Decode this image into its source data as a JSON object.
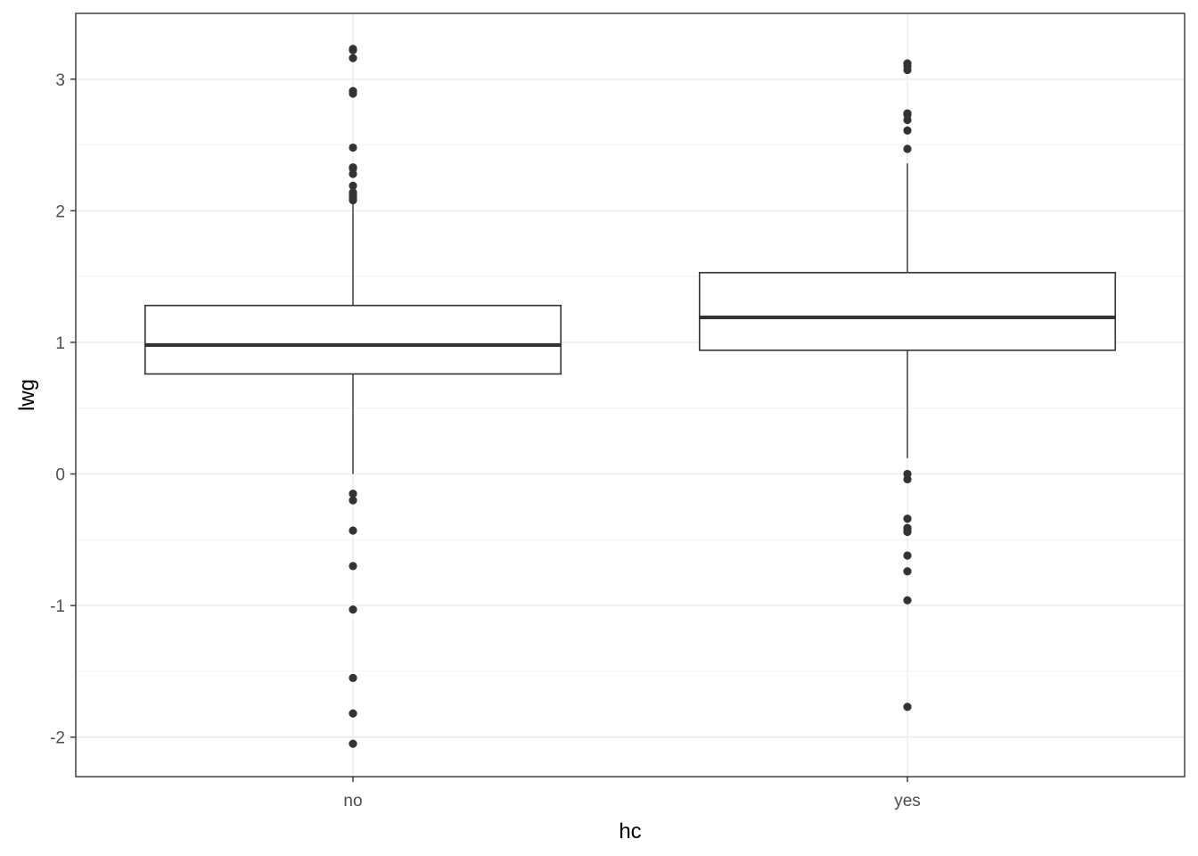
{
  "chart_data": {
    "type": "boxplot",
    "title": "",
    "xlabel": "hc",
    "ylabel": "lwg",
    "categories": [
      "no",
      "yes"
    ],
    "ylim": [
      -2.3,
      3.5
    ],
    "yticks": [
      -2,
      -1,
      0,
      1,
      2,
      3
    ],
    "ytick_labels": [
      "-2",
      "-1",
      "0",
      "1",
      "2",
      "3"
    ],
    "grid": true,
    "legend": "none",
    "colors": {
      "box_outline": "#333333",
      "outlier": "#333333",
      "grid_major": "#ebebeb",
      "grid_minor": "#f2f2f2",
      "panel_border": "#333333"
    },
    "boxes": [
      {
        "category": "no",
        "q1": 0.76,
        "median": 0.98,
        "q3": 1.28,
        "whisker_low": 0.0,
        "whisker_high": 2.06,
        "outliers": [
          3.23,
          3.22,
          3.16,
          2.91,
          2.89,
          2.48,
          2.33,
          2.32,
          2.28,
          2.19,
          2.14,
          2.12,
          2.1,
          2.08,
          -0.15,
          -0.2,
          -0.43,
          -0.7,
          -1.03,
          -1.55,
          -1.82,
          -2.05
        ]
      },
      {
        "category": "yes",
        "q1": 0.94,
        "median": 1.19,
        "q3": 1.53,
        "whisker_low": 0.12,
        "whisker_high": 2.36,
        "outliers": [
          3.12,
          3.1,
          3.07,
          2.74,
          2.73,
          2.69,
          2.61,
          2.47,
          0.0,
          -0.04,
          -0.34,
          -0.41,
          -0.43,
          -0.44,
          -0.62,
          -0.74,
          -0.96,
          -1.77
        ]
      }
    ]
  }
}
